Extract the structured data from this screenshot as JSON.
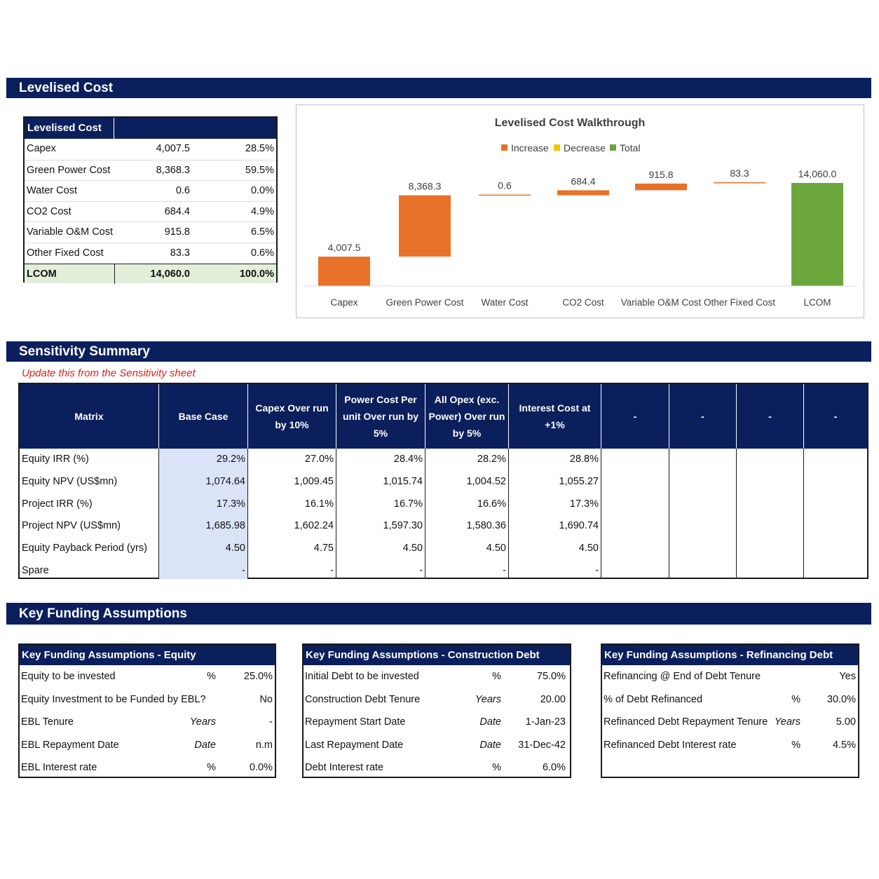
{
  "sections": {
    "levelised_cost": "Levelised Cost",
    "sensitivity": "Sensitivity Summary",
    "funding": "Key Funding Assumptions"
  },
  "lc_table": {
    "header": "Levelised Cost",
    "rows": [
      {
        "label": "Capex",
        "value": "4,007.5",
        "pct": "28.5%"
      },
      {
        "label": "Green Power Cost",
        "value": "8,368.3",
        "pct": "59.5%"
      },
      {
        "label": "Water Cost",
        "value": "0.6",
        "pct": "0.0%"
      },
      {
        "label": "CO2 Cost",
        "value": "684.4",
        "pct": "4.9%"
      },
      {
        "label": "Variable O&M Cost",
        "value": "915.8",
        "pct": "6.5%"
      },
      {
        "label": "Other Fixed Cost",
        "value": "83.3",
        "pct": "0.6%"
      }
    ],
    "total": {
      "label": "LCOM",
      "value": "14,060.0",
      "pct": "100.0%"
    }
  },
  "chart_data": {
    "type": "bar",
    "title": "Levelised Cost Walkthrough",
    "legend": [
      "Increase",
      "Decrease",
      "Total"
    ],
    "legend_position": "top",
    "colors": {
      "Increase": "#e8722a",
      "Decrease": "#f2c500",
      "Total": "#6aa63c"
    },
    "categories": [
      "Capex",
      "Green Power Cost",
      "Water Cost",
      "CO2 Cost",
      "Variable O&M Cost",
      "Other Fixed Cost",
      "LCOM"
    ],
    "values": [
      4007.5,
      8368.3,
      0.6,
      684.4,
      915.8,
      83.3,
      14060.0
    ],
    "kinds": [
      "Increase",
      "Increase",
      "Increase",
      "Increase",
      "Increase",
      "Increase",
      "Total"
    ],
    "labels": [
      "4,007.5",
      "8,368.3",
      "0.6",
      "684.4",
      "915.8",
      "83.3",
      "14,060.0"
    ],
    "ylim": [
      0,
      14060
    ]
  },
  "sensitivity": {
    "note": "Update this from the Sensitivity sheet",
    "headers": [
      "Matrix",
      "Base Case",
      "Capex Over run by 10%",
      "Power Cost Per unit Over run by 5%",
      "All Opex (exc. Power) Over run by 5%",
      "Interest Cost at +1%",
      "-",
      "-",
      "-",
      "-"
    ],
    "rows": [
      {
        "label": "Equity IRR (%)",
        "values": [
          "29.2%",
          "27.0%",
          "28.4%",
          "28.2%",
          "28.8%"
        ]
      },
      {
        "label": "Equity NPV (US$mn)",
        "values": [
          "1,074.64",
          "1,009.45",
          "1,015.74",
          "1,004.52",
          "1,055.27"
        ]
      },
      {
        "label": "Project IRR (%)",
        "values": [
          "17.3%",
          "16.1%",
          "16.7%",
          "16.6%",
          "17.3%"
        ]
      },
      {
        "label": "Project NPV (US$mn)",
        "values": [
          "1,685.98",
          "1,602.24",
          "1,597.30",
          "1,580.36",
          "1,690.74"
        ]
      },
      {
        "label": "Equity Payback Period (yrs)",
        "values": [
          "4.50",
          "4.75",
          "4.50",
          "4.50",
          "4.50"
        ]
      },
      {
        "label": "Spare",
        "values": [
          "-",
          "-",
          "-",
          "-",
          "-"
        ]
      }
    ]
  },
  "funding": {
    "equity": {
      "header": "Key Funding Assumptions - Equity",
      "rows": [
        {
          "label": "Equity to be invested",
          "unit": "%",
          "value": "25.0%"
        },
        {
          "label": "Equity Investment to be Funded by EBL?",
          "unit": "",
          "value": "No"
        },
        {
          "label": "EBL Tenure",
          "unit": "Years",
          "value": "-"
        },
        {
          "label": "EBL Repayment Date",
          "unit": "Date",
          "value": "n.m"
        },
        {
          "label": "EBL Interest rate",
          "unit": "%",
          "value": "0.0%"
        }
      ]
    },
    "construction": {
      "header": "Key Funding Assumptions - Construction Debt",
      "rows": [
        {
          "label": "Initial Debt to be invested",
          "unit": "%",
          "value": "75.0%"
        },
        {
          "label": "Construction Debt Tenure",
          "unit": "Years",
          "value": "20.00"
        },
        {
          "label": "Repayment Start Date",
          "unit": "Date",
          "value": "1-Jan-23"
        },
        {
          "label": "Last Repayment Date",
          "unit": "Date",
          "value": "31-Dec-42"
        },
        {
          "label": "Debt Interest rate",
          "unit": "%",
          "value": "6.0%"
        }
      ]
    },
    "refinancing": {
      "header": "Key Funding Assumptions - Refinancing Debt",
      "rows": [
        {
          "label": "Refinancing @ End of Debt Tenure",
          "unit": "",
          "value": "Yes"
        },
        {
          "label": "% of Debt Refinanced",
          "unit": "%",
          "value": "30.0%"
        },
        {
          "label": "Refinanced Debt Repayment Tenure",
          "unit": "Years",
          "value": "5.00"
        },
        {
          "label": "Refinanced Debt Interest rate",
          "unit": "%",
          "value": "4.5%"
        }
      ]
    }
  }
}
